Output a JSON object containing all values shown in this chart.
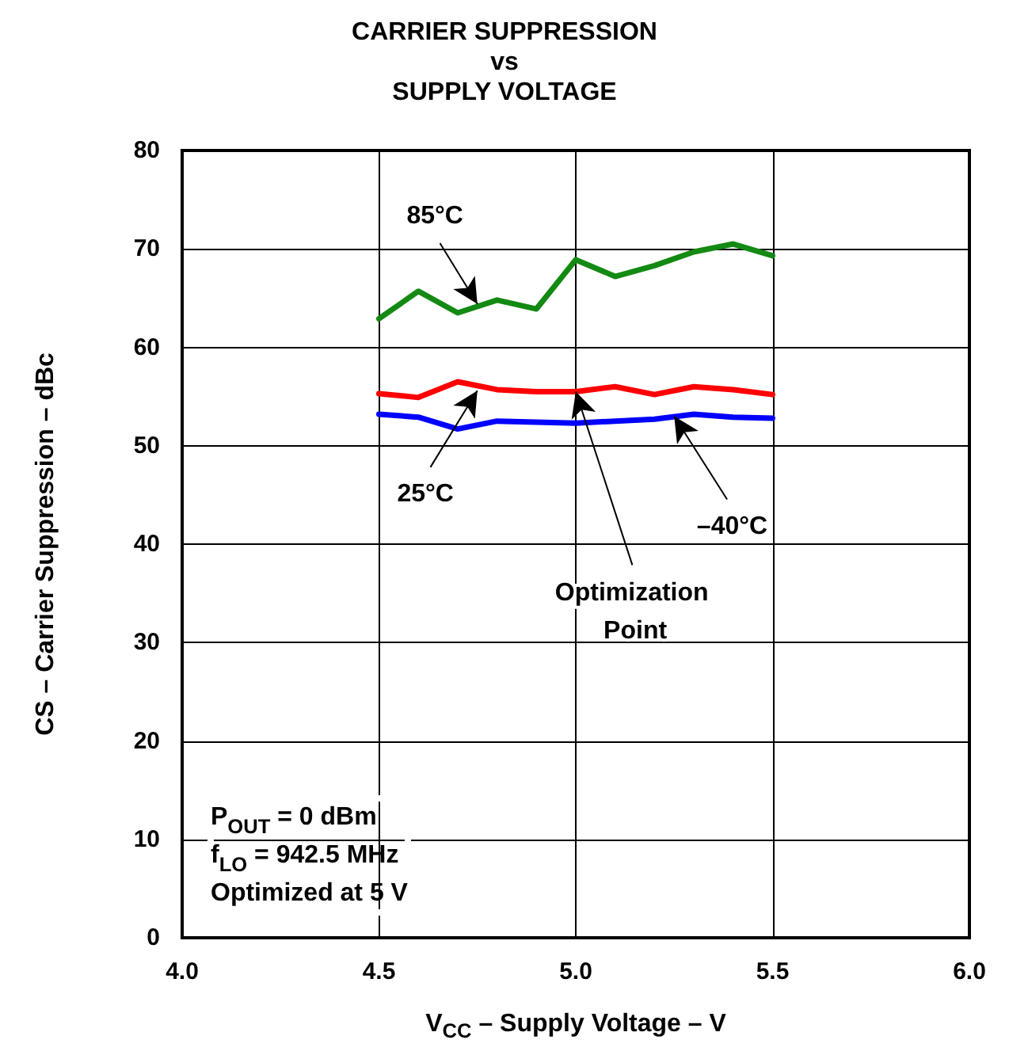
{
  "chart_data": {
    "type": "line",
    "title": "CARRIER SUPPRESSION\nvs\nSUPPLY VOLTAGE",
    "xlabel": "V$_{CC}$ – Supply Voltage – V",
    "ylabel": "CS – Carrier Suppression – dBc",
    "x": [
      4.5,
      4.6,
      4.7,
      4.8,
      4.9,
      5.0,
      5.1,
      5.2,
      5.3,
      5.4,
      5.5
    ],
    "series": [
      {
        "color": "#138a13",
        "values": [
          62.9,
          65.7,
          63.5,
          64.8,
          63.9,
          68.9,
          67.2,
          68.3,
          69.7,
          70.5,
          69.3
        ]
      },
      {
        "color": "#ff0000",
        "values": [
          55.3,
          54.9,
          56.5,
          55.7,
          55.5,
          55.5,
          56.0,
          55.2,
          56.0,
          55.7,
          55.2
        ]
      },
      {
        "color": "#0000ff",
        "values": [
          53.2,
          52.9,
          51.7,
          52.5,
          52.4,
          52.3,
          52.5,
          52.7,
          53.2,
          52.9,
          52.8
        ]
      }
    ],
    "xlim": [
      4.0,
      6.0
    ],
    "xticks": [
      {
        "value": 4.0,
        "label": "4.0"
      },
      {
        "value": 4.5,
        "label": "4.5"
      },
      {
        "value": 5.0,
        "label": "5.0"
      },
      {
        "value": 5.5,
        "label": "5.5"
      },
      {
        "value": 6.0,
        "label": "6.0"
      }
    ],
    "ylim": [
      0,
      80
    ],
    "yticks": [
      0,
      10,
      20,
      30,
      40,
      50,
      60,
      70,
      80
    ],
    "grid": true,
    "marker": "none",
    "line_style": "solid",
    "annotations": [
      {
        "text": "85°C",
        "x": 4.75,
        "y": 64.4
      },
      {
        "text": "25°C",
        "x": 4.75,
        "y": 55.6
      },
      {
        "text": "–40°C",
        "x": 5.25,
        "y": 53.0
      },
      {
        "text": "Optimization Point",
        "x": 5.0,
        "y": 55.5
      },
      "P$_{OUT}$ = 0 dBm",
      "f$_{LO}$ = 942.5 MHz",
      "Optimized at 5 V"
    ]
  }
}
